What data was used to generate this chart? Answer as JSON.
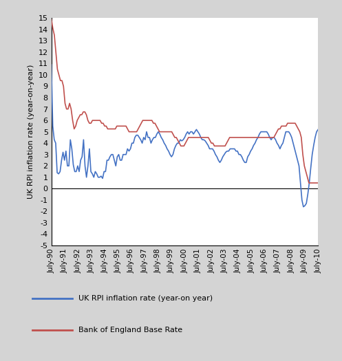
{
  "title": "",
  "ylabel": "UK RPI inflation rate (year-on-year)",
  "ylim": [
    -5,
    15
  ],
  "yticks": [
    -5,
    -4,
    -3,
    -2,
    -1,
    0,
    1,
    2,
    3,
    4,
    5,
    6,
    7,
    8,
    9,
    10,
    11,
    12,
    13,
    14,
    15
  ],
  "bg_color": "#ffffff",
  "outer_bg": "#d9d9d9",
  "rpi_color": "#4472C4",
  "boe_color": "#C0504D",
  "legend_rpi": "UK RPI inflation rate (year-on year)",
  "legend_boe": "Bank of England Base Rate",
  "x_labels": [
    "July-90",
    "July-91",
    "July-92",
    "July-93",
    "July-94",
    "July-95",
    "July-96",
    "July-97",
    "July-98",
    "July-99",
    "July-00",
    "July-01",
    "July-02",
    "July-03",
    "July-04",
    "July-05",
    "July-06",
    "July-07",
    "July-08",
    "July-09",
    "July-10"
  ],
  "rpi_data": [
    10.9,
    5.5,
    4.3,
    4.0,
    1.4,
    1.3,
    1.5,
    2.5,
    3.2,
    2.5,
    3.3,
    2.0,
    2.0,
    4.3,
    3.5,
    2.1,
    1.5,
    1.5,
    2.0,
    1.5,
    2.5,
    2.8,
    4.3,
    2.0,
    1.0,
    2.0,
    3.5,
    1.5,
    1.3,
    1.0,
    1.5,
    1.3,
    1.0,
    1.0,
    1.1,
    0.9,
    1.5,
    1.5,
    2.5,
    2.5,
    2.8,
    3.0,
    3.0,
    2.5,
    2.0,
    2.8,
    3.0,
    2.5,
    2.5,
    3.0,
    3.0,
    3.0,
    3.5,
    3.3,
    3.5,
    4.0,
    4.0,
    4.5,
    4.7,
    4.7,
    4.5,
    4.3,
    4.0,
    4.5,
    4.3,
    5.0,
    4.5,
    4.5,
    4.0,
    4.3,
    4.5,
    4.5,
    4.8,
    5.0,
    4.8,
    4.5,
    4.3,
    4.0,
    3.8,
    3.5,
    3.3,
    3.0,
    2.8,
    3.0,
    3.5,
    3.8,
    4.0,
    4.0,
    4.3,
    4.2,
    4.3,
    4.5,
    4.8,
    5.0,
    4.8,
    5.0,
    5.0,
    4.8,
    5.0,
    5.2,
    5.0,
    4.8,
    4.5,
    4.3,
    4.3,
    4.2,
    4.0,
    3.8,
    3.5,
    3.5,
    3.5,
    3.3,
    3.0,
    2.8,
    2.5,
    2.3,
    2.5,
    2.8,
    3.0,
    3.2,
    3.3,
    3.3,
    3.5,
    3.5,
    3.5,
    3.5,
    3.3,
    3.3,
    3.0,
    3.0,
    2.8,
    2.5,
    2.3,
    2.3,
    2.8,
    3.0,
    3.3,
    3.5,
    3.8,
    4.0,
    4.3,
    4.5,
    4.8,
    5.0,
    5.0,
    5.0,
    5.0,
    5.0,
    4.8,
    4.5,
    4.3,
    4.5,
    4.5,
    4.3,
    4.0,
    3.8,
    3.5,
    3.8,
    4.0,
    4.5,
    5.0,
    5.0,
    5.0,
    4.8,
    4.5,
    4.0,
    3.5,
    3.0,
    2.5,
    2.0,
    0.5,
    -1.0,
    -1.6,
    -1.5,
    -1.3,
    -0.5,
    0.5,
    1.8,
    3.0,
    3.8,
    4.5,
    5.0,
    5.2
  ],
  "boe_data": [
    14.9,
    14.1,
    13.5,
    12.0,
    10.5,
    10.0,
    9.5,
    9.5,
    9.0,
    7.5,
    7.0,
    7.0,
    7.5,
    7.0,
    6.0,
    5.25,
    5.5,
    6.0,
    6.25,
    6.5,
    6.5,
    6.75,
    6.75,
    6.5,
    6.0,
    5.75,
    5.75,
    6.0,
    6.0,
    6.0,
    6.0,
    6.0,
    6.0,
    5.75,
    5.75,
    5.5,
    5.5,
    5.25,
    5.25,
    5.25,
    5.25,
    5.25,
    5.25,
    5.5,
    5.5,
    5.5,
    5.5,
    5.5,
    5.5,
    5.5,
    5.25,
    5.0,
    5.0,
    5.0,
    5.0,
    5.0,
    5.0,
    5.25,
    5.5,
    5.75,
    6.0,
    6.0,
    6.0,
    6.0,
    6.0,
    6.0,
    6.0,
    5.75,
    5.75,
    5.5,
    5.25,
    5.0,
    5.0,
    5.0,
    5.0,
    5.0,
    5.0,
    5.0,
    5.0,
    5.0,
    4.75,
    4.5,
    4.5,
    4.25,
    4.0,
    3.75,
    3.75,
    3.75,
    4.0,
    4.25,
    4.5,
    4.5,
    4.5,
    4.5,
    4.5,
    4.5,
    4.5,
    4.5,
    4.5,
    4.5,
    4.5,
    4.5,
    4.5,
    4.5,
    4.25,
    4.0,
    4.0,
    3.75,
    3.75,
    3.75,
    3.75,
    3.75,
    3.75,
    3.75,
    3.75,
    4.0,
    4.25,
    4.5,
    4.5,
    4.5,
    4.5,
    4.5,
    4.5,
    4.5,
    4.5,
    4.5,
    4.5,
    4.5,
    4.5,
    4.5,
    4.5,
    4.5,
    4.5,
    4.5,
    4.5,
    4.5,
    4.5,
    4.5,
    4.5,
    4.5,
    4.5,
    4.5,
    4.5,
    4.5,
    4.5,
    4.5,
    4.5,
    4.75,
    5.0,
    5.25,
    5.25,
    5.5,
    5.5,
    5.5,
    5.5,
    5.75,
    5.75,
    5.75,
    5.75,
    5.75,
    5.75,
    5.5,
    5.25,
    5.0,
    4.5,
    3.0,
    2.0,
    1.5,
    1.0,
    0.5,
    0.5,
    0.5,
    0.5,
    0.5,
    0.5,
    0.5
  ]
}
